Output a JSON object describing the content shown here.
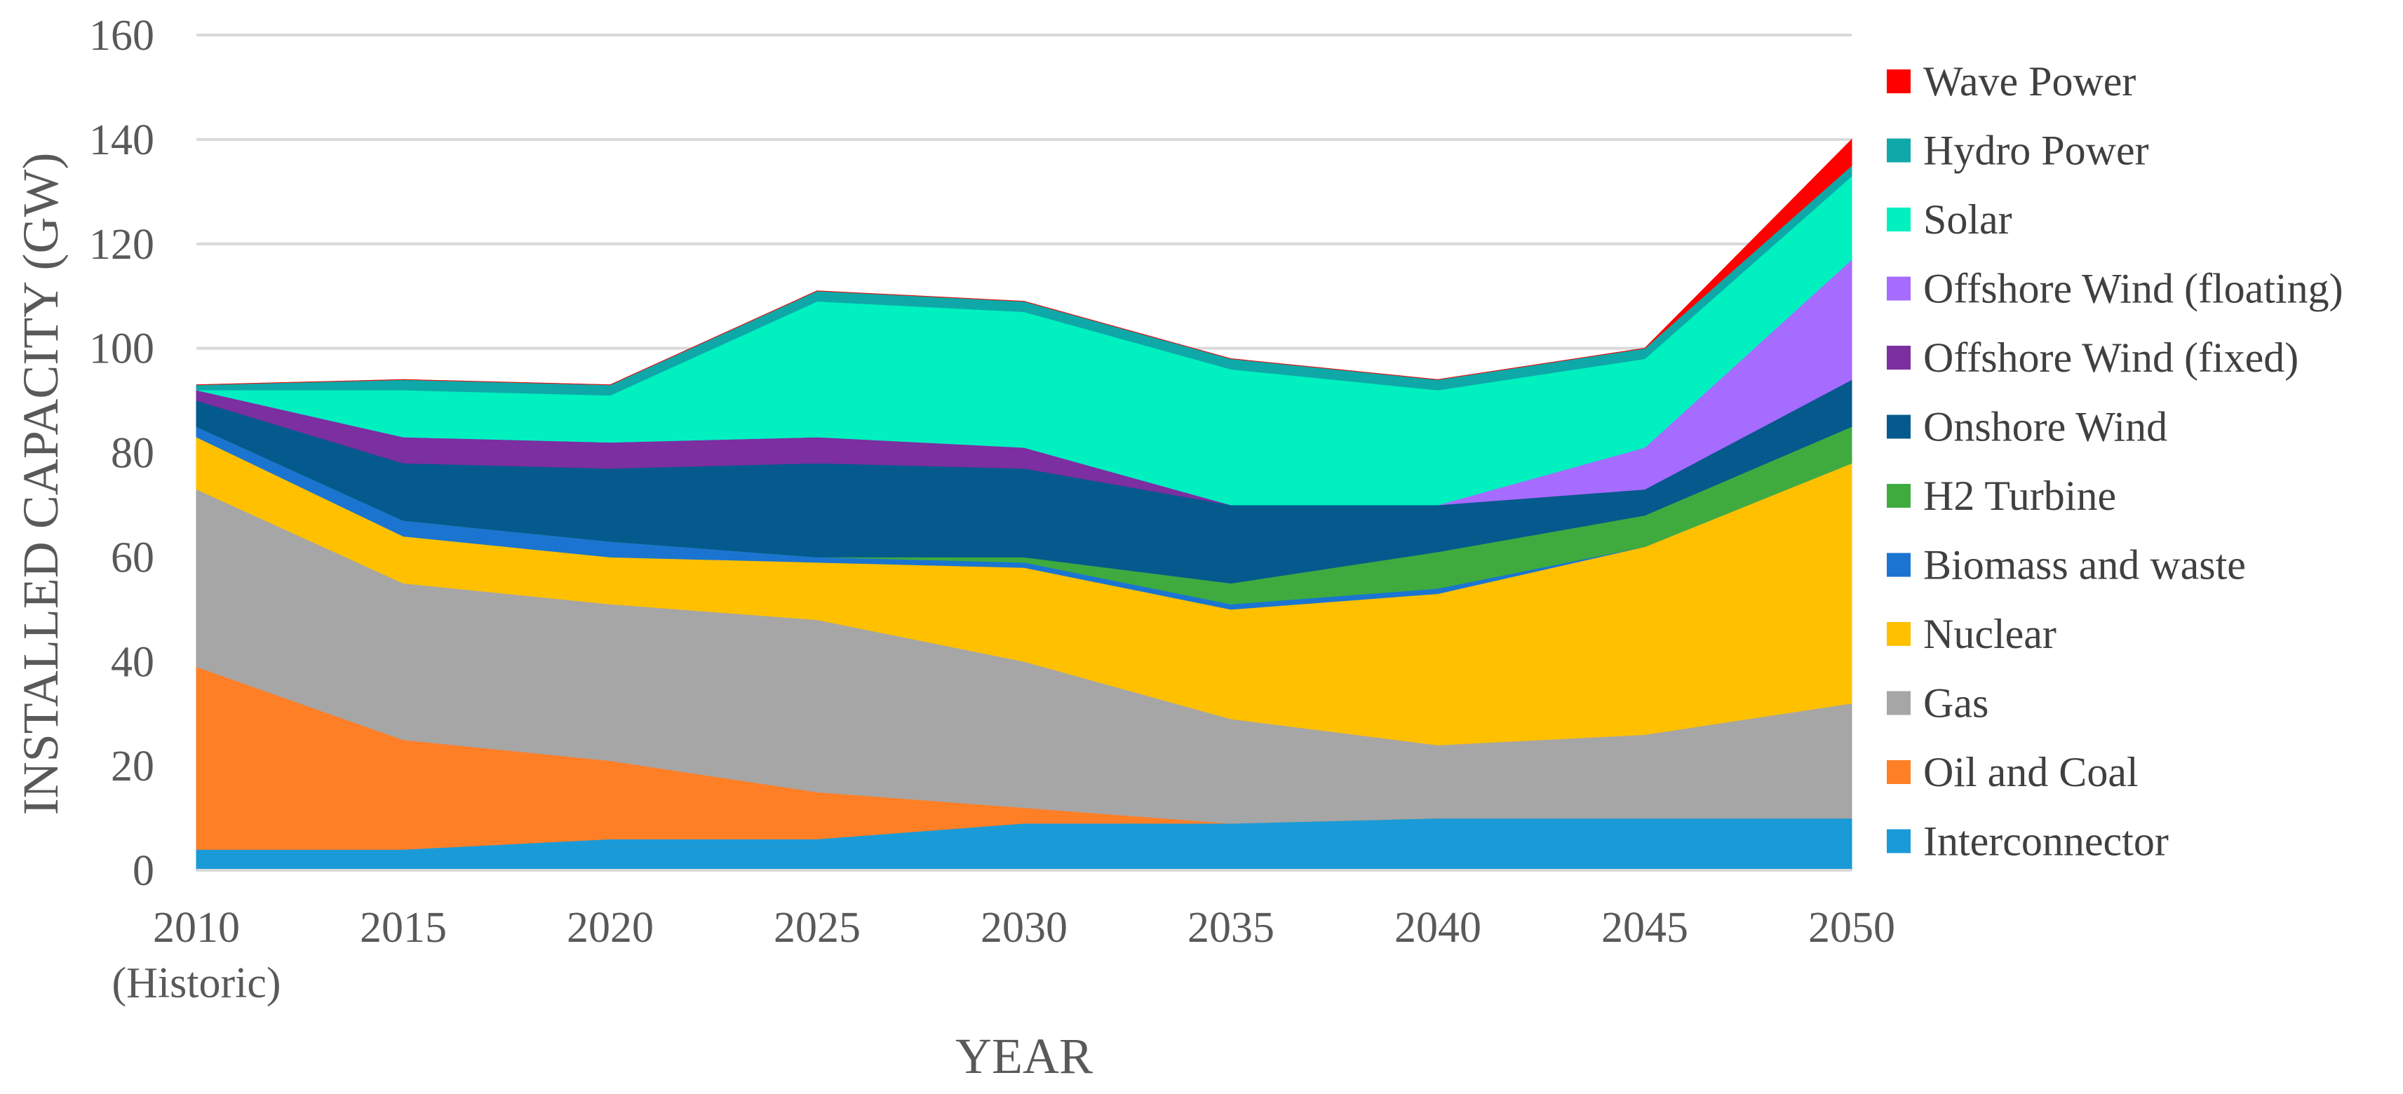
{
  "chart_data": {
    "type": "area",
    "stacked": true,
    "title": "",
    "xlabel": "YEAR",
    "ylabel": "INSTALLED CAPACITY (GW)",
    "ylim": [
      0,
      160
    ],
    "yticks": [
      0,
      20,
      40,
      60,
      80,
      100,
      120,
      140,
      160
    ],
    "grid": true,
    "legend_position": "right",
    "categories": [
      "2010",
      "2015",
      "2020",
      "2025",
      "2030",
      "2035",
      "2040",
      "2045",
      "2050"
    ],
    "first_category_sublabel": "(Historic)",
    "series": [
      {
        "name": "Interconnector",
        "color": "#1A9BD7",
        "values": [
          4,
          4,
          6,
          6,
          9,
          9,
          10,
          10,
          10
        ]
      },
      {
        "name": "Oil and Coal",
        "color": "#FF7F27",
        "values": [
          35,
          21,
          15,
          9,
          3,
          0,
          0,
          0,
          0
        ]
      },
      {
        "name": "Gas",
        "color": "#A6A6A6",
        "values": [
          34,
          30,
          30,
          33,
          28,
          20,
          14,
          16,
          22
        ]
      },
      {
        "name": "Nuclear",
        "color": "#FFC000",
        "values": [
          10,
          9,
          9,
          11,
          18,
          21,
          29,
          36,
          46
        ]
      },
      {
        "name": "Biomass and waste",
        "color": "#1B75D0",
        "values": [
          2,
          3,
          3,
          1,
          1,
          1,
          1,
          0,
          0
        ]
      },
      {
        "name": "H2 Turbine",
        "color": "#3FAB3F",
        "values": [
          0,
          0,
          0,
          0,
          1,
          4,
          7,
          6,
          7
        ]
      },
      {
        "name": "Onshore Wind",
        "color": "#045A8D",
        "values": [
          5,
          11,
          14,
          18,
          17,
          15,
          9,
          5,
          9
        ]
      },
      {
        "name": "Offshore Wind (fixed)",
        "color": "#7B2FA0",
        "values": [
          2,
          5,
          5,
          5,
          4,
          0,
          0,
          0,
          0
        ]
      },
      {
        "name": "Offshore Wind (floating)",
        "color": "#A66BFF",
        "values": [
          0,
          0,
          0,
          0,
          0,
          0,
          0,
          8,
          23
        ]
      },
      {
        "name": "Solar",
        "color": "#00F0C0",
        "values": [
          0,
          9,
          9,
          26,
          26,
          26,
          22,
          17,
          16
        ]
      },
      {
        "name": "Hydro Power",
        "color": "#0FA8A8",
        "values": [
          1,
          2,
          2,
          2,
          2,
          2,
          2,
          2,
          2
        ]
      },
      {
        "name": "Wave Power",
        "color": "#FF0000",
        "values": [
          0,
          0,
          0,
          0,
          0,
          0,
          0,
          0,
          5
        ]
      }
    ]
  }
}
